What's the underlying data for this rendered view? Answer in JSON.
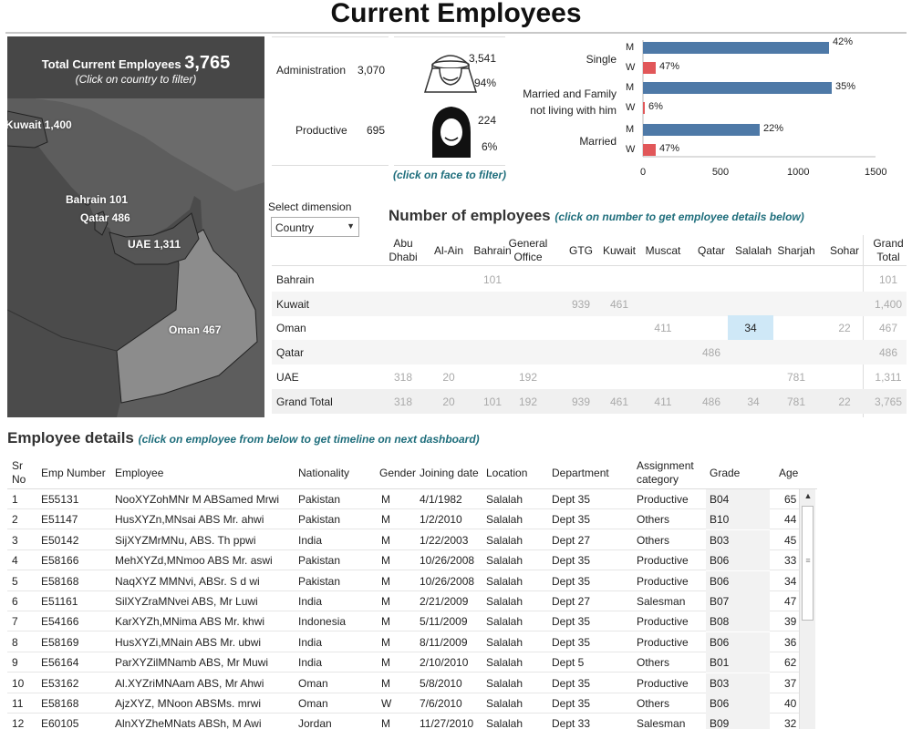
{
  "title": "Current Employees",
  "map": {
    "header_label": "Total Current Employees",
    "header_value": "3,765",
    "subtitle": "(Click on country to filter)",
    "labels": {
      "kuwait": "Kuwait 1,400",
      "bahrain": "Bahrain 101",
      "qatar": "Qatar 486",
      "uae": "UAE 1,311",
      "oman": "Oman 467"
    }
  },
  "category": {
    "rows": [
      {
        "label": "Administration",
        "value": "3,070"
      },
      {
        "label": "Productive",
        "value": "695"
      }
    ]
  },
  "gender": {
    "male_count": "3,541",
    "male_pct": "94%",
    "female_count": "224",
    "female_pct": "6%",
    "hint": "(click on face to filter)"
  },
  "marital": {
    "groups": [
      {
        "label": "Single",
        "bars": [
          {
            "g": "M",
            "pct": "42%"
          },
          {
            "g": "W",
            "pct": "47%"
          }
        ]
      },
      {
        "label1": "Married and Family",
        "label2": "not living with him",
        "bars": [
          {
            "g": "M",
            "pct": "35%"
          },
          {
            "g": "W",
            "pct": "6%"
          }
        ]
      },
      {
        "label": "Married",
        "bars": [
          {
            "g": "M",
            "pct": "22%"
          },
          {
            "g": "W",
            "pct": "47%"
          }
        ]
      }
    ],
    "axis_ticks": [
      "0",
      "500",
      "1000",
      "1500"
    ],
    "colors": {
      "male": "#4e79a7",
      "female": "#e15759"
    }
  },
  "dimension": {
    "label": "Select dimension",
    "value": "Country",
    "arrow": "▼"
  },
  "crosstab": {
    "title": "Number of employees",
    "hint": "(click on number to get employee details below)",
    "columns": [
      {
        "line1": "Abu",
        "line2": "Dhabi"
      },
      {
        "line1": "Al-Ain",
        "line2": ""
      },
      {
        "line1": "Bahrain",
        "line2": ""
      },
      {
        "line1": "General",
        "line2": "Office"
      },
      {
        "line1": "GTG",
        "line2": ""
      },
      {
        "line1": "Kuwait",
        "line2": ""
      },
      {
        "line1": "Muscat",
        "line2": ""
      },
      {
        "line1": "Qatar",
        "line2": ""
      },
      {
        "line1": "Salalah",
        "line2": ""
      },
      {
        "line1": "Sharjah",
        "line2": ""
      },
      {
        "line1": "Sohar",
        "line2": ""
      },
      {
        "line1": "Grand",
        "line2": "Total"
      }
    ],
    "rows": [
      {
        "label": "Bahrain",
        "cells": [
          "",
          "",
          "101",
          "",
          "",
          "",
          "",
          "",
          "",
          "",
          "",
          "101"
        ]
      },
      {
        "label": "Kuwait",
        "cells": [
          "",
          "",
          "",
          "",
          "939",
          "461",
          "",
          "",
          "",
          "",
          "",
          "1,400"
        ]
      },
      {
        "label": "Oman",
        "cells": [
          "",
          "",
          "",
          "",
          "",
          "",
          "411",
          "",
          "34",
          "",
          "22",
          "467"
        ]
      },
      {
        "label": "Qatar",
        "cells": [
          "",
          "",
          "",
          "",
          "",
          "",
          "",
          "486",
          "",
          "",
          "",
          "486"
        ]
      },
      {
        "label": "UAE",
        "cells": [
          "318",
          "20",
          "",
          "192",
          "",
          "",
          "",
          "",
          "",
          "781",
          "",
          "1,311"
        ]
      },
      {
        "label": "Grand Total",
        "cells": [
          "318",
          "20",
          "101",
          "192",
          "939",
          "461",
          "411",
          "486",
          "34",
          "781",
          "22",
          "3,765"
        ]
      }
    ]
  },
  "employees": {
    "title": "Employee details",
    "hint": "(click on employee from below to get timeline on next dashboard)",
    "headers": {
      "sr1": "Sr",
      "sr2": "No",
      "emp_number": "Emp Number",
      "employee": "Employee",
      "nationality": "Nationality",
      "gender": "Gender",
      "joining": "Joining date",
      "location": "Location",
      "department": "Department",
      "assign1": "Assignment",
      "assign2": "category",
      "grade": "Grade",
      "age": "Age"
    },
    "rows": [
      {
        "sr": "1",
        "num": "E55131",
        "name": "NooXYZohMNr M ABSamed Mrwi",
        "nat": "Pakistan",
        "g": "M",
        "join": "4/1/1982",
        "loc": "Salalah",
        "dept": "Dept 35",
        "cat": "Productive",
        "grade": "B04",
        "age": "65"
      },
      {
        "sr": "2",
        "num": "E51147",
        "name": "HusXYZn,MNsai ABS Mr. ahwi",
        "nat": "Pakistan",
        "g": "M",
        "join": "1/2/2010",
        "loc": "Salalah",
        "dept": "Dept 35",
        "cat": "Others",
        "grade": "B10",
        "age": "44"
      },
      {
        "sr": "3",
        "num": "E50142",
        "name": "SijXYZMrMNu,  ABS. Th ppwi",
        "nat": "India",
        "g": "M",
        "join": "1/22/2003",
        "loc": "Salalah",
        "dept": "Dept 27",
        "cat": "Others",
        "grade": "B03",
        "age": "45"
      },
      {
        "sr": "4",
        "num": "E58166",
        "name": "MehXYZd,MNmoo ABS Mr. aswi",
        "nat": "Pakistan",
        "g": "M",
        "join": "10/26/2008",
        "loc": "Salalah",
        "dept": "Dept 35",
        "cat": "Productive",
        "grade": "B06",
        "age": "33"
      },
      {
        "sr": "5",
        "num": "E58168",
        "name": "NaqXYZ MMNvi, ABSr. S d wi",
        "nat": "Pakistan",
        "g": "M",
        "join": "10/26/2008",
        "loc": "Salalah",
        "dept": "Dept 35",
        "cat": "Productive",
        "grade": "B06",
        "age": "34"
      },
      {
        "sr": "6",
        "num": "E51161",
        "name": "SilXYZraMNvei ABS, Mr Luwi",
        "nat": "India",
        "g": "M",
        "join": "2/21/2009",
        "loc": "Salalah",
        "dept": "Dept 27",
        "cat": "Salesman",
        "grade": "B07",
        "age": "47"
      },
      {
        "sr": "7",
        "num": "E54166",
        "name": "KarXYZh,MNima ABS Mr. khwi",
        "nat": "Indonesia",
        "g": "M",
        "join": "5/11/2009",
        "loc": "Salalah",
        "dept": "Dept 35",
        "cat": "Productive",
        "grade": "B08",
        "age": "39"
      },
      {
        "sr": "8",
        "num": "E58169",
        "name": "HusXYZi,MNain ABS Mr. ubwi",
        "nat": "India",
        "g": "M",
        "join": "8/11/2009",
        "loc": "Salalah",
        "dept": "Dept 35",
        "cat": "Productive",
        "grade": "B06",
        "age": "36"
      },
      {
        "sr": "9",
        "num": "E56164",
        "name": "ParXYZilMNamb ABS, Mr Muwi",
        "nat": "India",
        "g": "M",
        "join": "2/10/2010",
        "loc": "Salalah",
        "dept": "Dept 5",
        "cat": "Others",
        "grade": "B01",
        "age": "62"
      },
      {
        "sr": "10",
        "num": "E53162",
        "name": "Al.XYZriMNAam ABS, Mr Ahwi",
        "nat": "Oman",
        "g": "M",
        "join": "5/8/2010",
        "loc": "Salalah",
        "dept": "Dept 35",
        "cat": "Productive",
        "grade": "B03",
        "age": "37"
      },
      {
        "sr": "11",
        "num": "E58168",
        "name": "AjzXYZ, MNoon ABSMs.  mrwi",
        "nat": "Oman",
        "g": "W",
        "join": "7/6/2010",
        "loc": "Salalah",
        "dept": "Dept 35",
        "cat": "Others",
        "grade": "B06",
        "age": "40"
      },
      {
        "sr": "12",
        "num": "E60105",
        "name": "AlnXYZheMNats ABSh, M  Awi",
        "nat": "Jordan",
        "g": "M",
        "join": "11/27/2010",
        "loc": "Salalah",
        "dept": "Dept 33",
        "cat": "Salesman",
        "grade": "B09",
        "age": "32"
      }
    ]
  },
  "scroll": {
    "up": "▲",
    "grip": "≡"
  }
}
